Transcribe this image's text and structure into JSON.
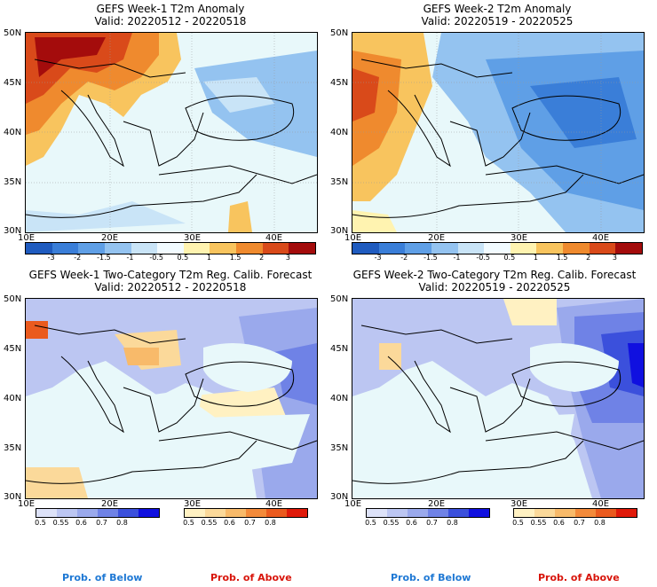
{
  "panels": [
    {
      "title1": "GEFS Week-1 T2m Anomaly",
      "title2": "Valid: 20220512 - 20220518"
    },
    {
      "title1": "GEFS Week-2 T2m Anomaly",
      "title2": "Valid: 20220519 - 20220525"
    },
    {
      "title1": "GEFS Week-1 Two-Category T2m Reg. Calib. Forecast",
      "title2": "Valid: 20220512 - 20220518"
    },
    {
      "title1": "GEFS Week-2 Two-Category T2m Reg. Calib. Forecast",
      "title2": "Valid: 20220519 - 20220525"
    }
  ],
  "lat_labels": [
    "50N",
    "45N",
    "40N",
    "35N",
    "30N"
  ],
  "lon_labels": [
    "10E",
    "20E",
    "30E",
    "40E"
  ],
  "anomaly_scale": {
    "labels": [
      "-3",
      "-2",
      "-1.5",
      "-1",
      "-0.5",
      "0.5",
      "1",
      "1.5",
      "2",
      "3"
    ],
    "colors": [
      "#1f5bbf",
      "#3a7ed8",
      "#5f9fe6",
      "#94c3f0",
      "#c9e4f7",
      "#f2fbff",
      "#fff3b0",
      "#f8c45e",
      "#ef8a2e",
      "#d94a1a",
      "#a40c0c"
    ]
  },
  "prob_below": {
    "labels": [
      "0.5",
      "0.55",
      "0.6",
      "0.7",
      "0.8"
    ],
    "colors": [
      "#dde2f8",
      "#bcc6f2",
      "#9aa9ec",
      "#6f82e6",
      "#3b50dc",
      "#1010e0"
    ],
    "caption": "Prob. of Below",
    "caption_color": "#1e78d4"
  },
  "prob_above": {
    "labels": [
      "0.5",
      "0.55",
      "0.6",
      "0.7",
      "0.8"
    ],
    "colors": [
      "#fff1c2",
      "#fbd99a",
      "#f8ba6a",
      "#f38a3a",
      "#ea5a1e",
      "#e01a0a"
    ],
    "caption": "Prob. of Above",
    "caption_color": "#d8140a"
  },
  "colors": {
    "sea_neutral": "#e8f8fa",
    "coast": "#000000"
  }
}
